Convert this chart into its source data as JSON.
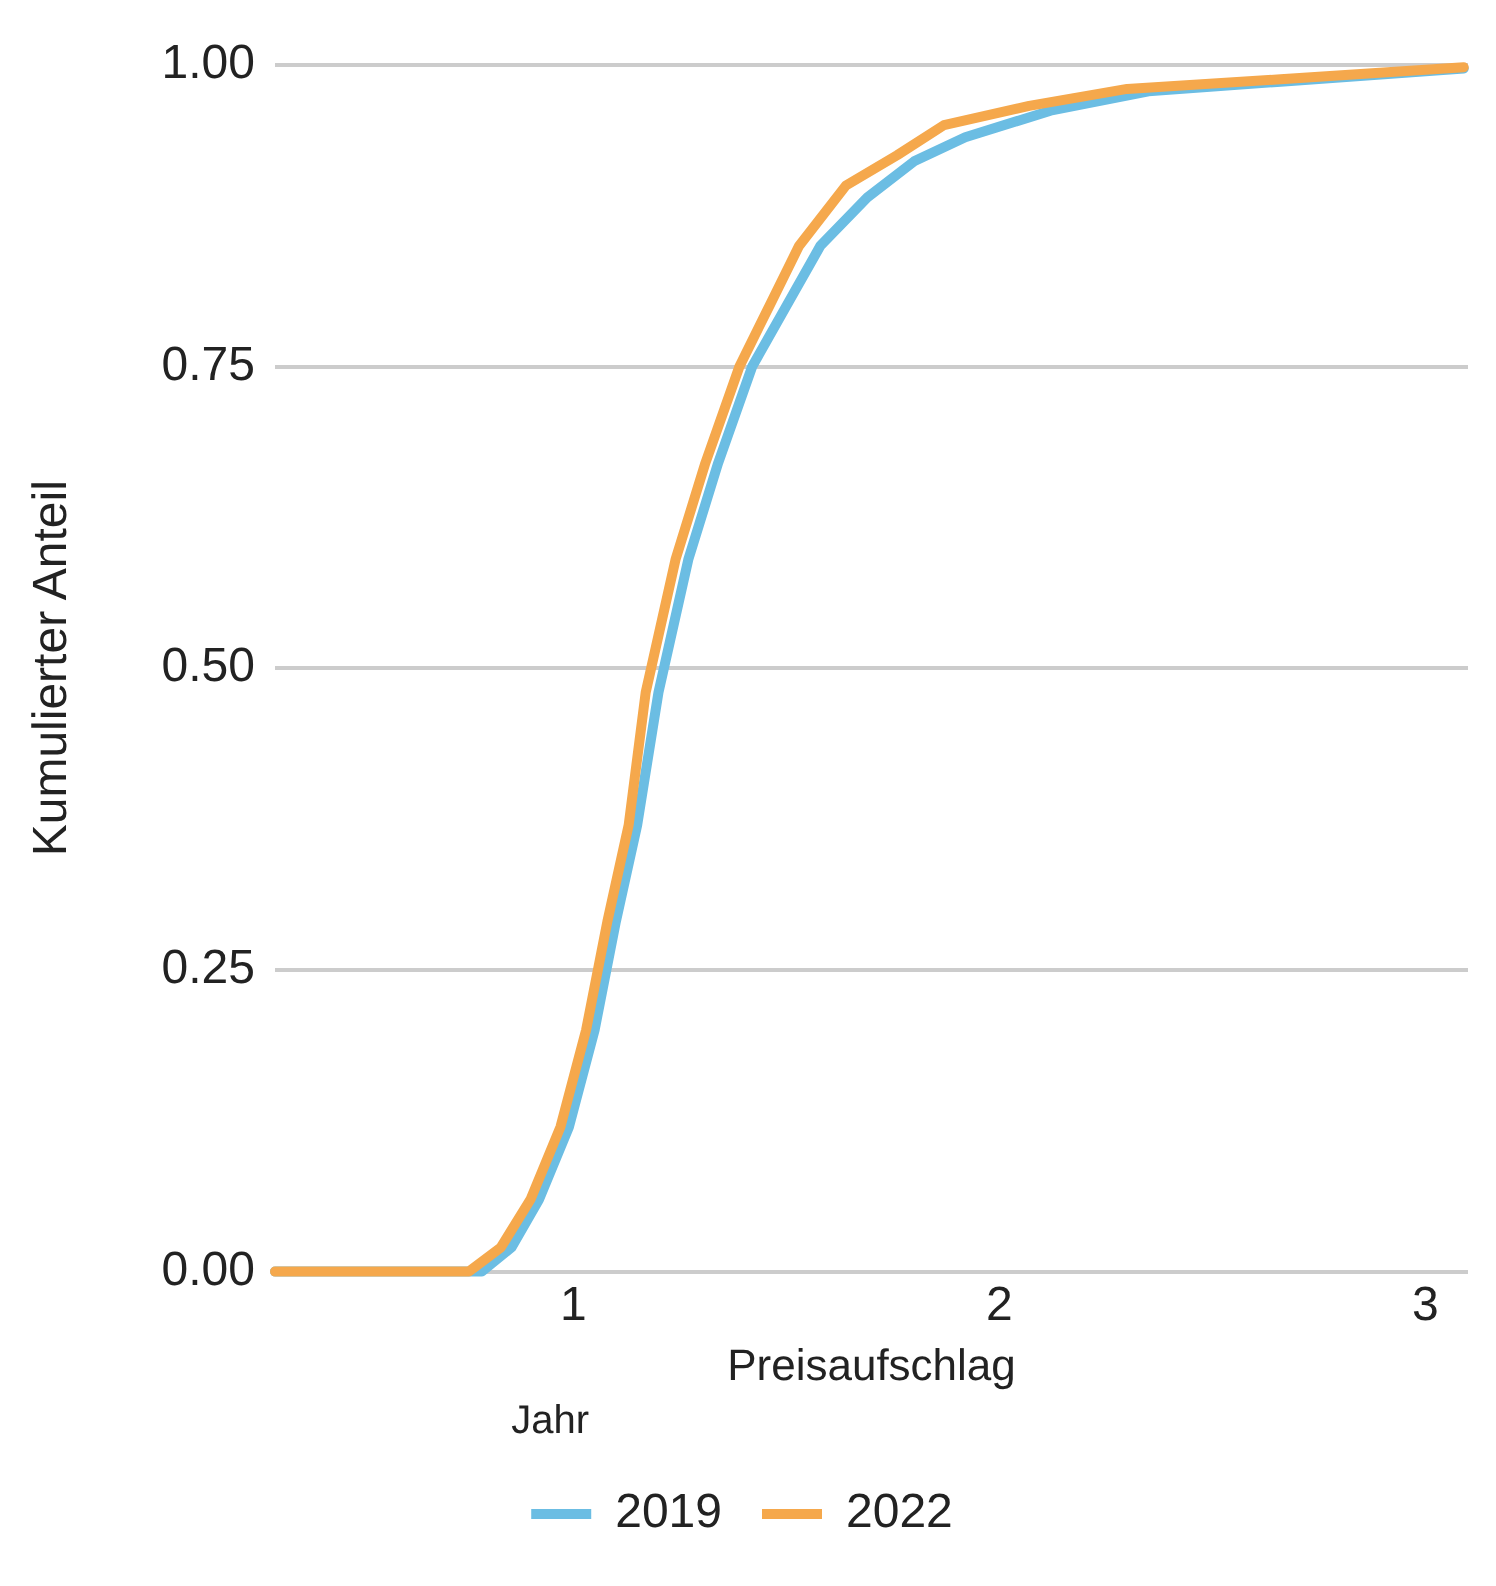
{
  "chart_data": {
    "type": "line",
    "xlabel": "Preisaufschlag",
    "ylabel": "Kumulierter Anteil",
    "legend_title": "Jahr",
    "legend": "bottom",
    "grid": "y",
    "marker": "none",
    "line_style": "solid",
    "xlim": [
      0.3,
      3.1
    ],
    "xticks": [
      1,
      2,
      3
    ],
    "ylim": [
      0,
      1
    ],
    "yticks": [
      {
        "value": 0,
        "label": "0.00"
      },
      {
        "value": 0.25,
        "label": "0.25"
      },
      {
        "value": 0.5,
        "label": "0.50"
      },
      {
        "value": 0.75,
        "label": "0.75"
      },
      {
        "value": 1,
        "label": "1.00"
      }
    ],
    "series": [
      {
        "name": "2019",
        "color": "#6bbde3",
        "x": [
          0.3,
          0.785,
          0.855,
          0.92,
          0.99,
          1.05,
          1.1,
          1.15,
          1.2,
          1.27,
          1.34,
          1.42,
          1.5,
          1.58,
          1.69,
          1.8,
          1.92,
          2.12,
          2.35,
          2.66,
          3.09
        ],
        "values": [
          0,
          0,
          0.02,
          0.06,
          0.12,
          0.2,
          0.29,
          0.37,
          0.48,
          0.59,
          0.67,
          0.75,
          0.8,
          0.85,
          0.89,
          0.92,
          0.94,
          0.962,
          0.978,
          0.986,
          0.997
        ]
      },
      {
        "name": "2022",
        "color": "#f5a84c",
        "x": [
          0.3,
          0.755,
          0.83,
          0.9,
          0.97,
          1.03,
          1.08,
          1.13,
          1.17,
          1.24,
          1.31,
          1.39,
          1.46,
          1.53,
          1.64,
          1.76,
          1.87,
          2.07,
          2.3,
          2.66,
          3.09
        ],
        "values": [
          0,
          0,
          0.02,
          0.06,
          0.12,
          0.2,
          0.29,
          0.37,
          0.48,
          0.59,
          0.67,
          0.75,
          0.8,
          0.85,
          0.9,
          0.925,
          0.95,
          0.966,
          0.98,
          0.988,
          0.998
        ]
      }
    ]
  }
}
